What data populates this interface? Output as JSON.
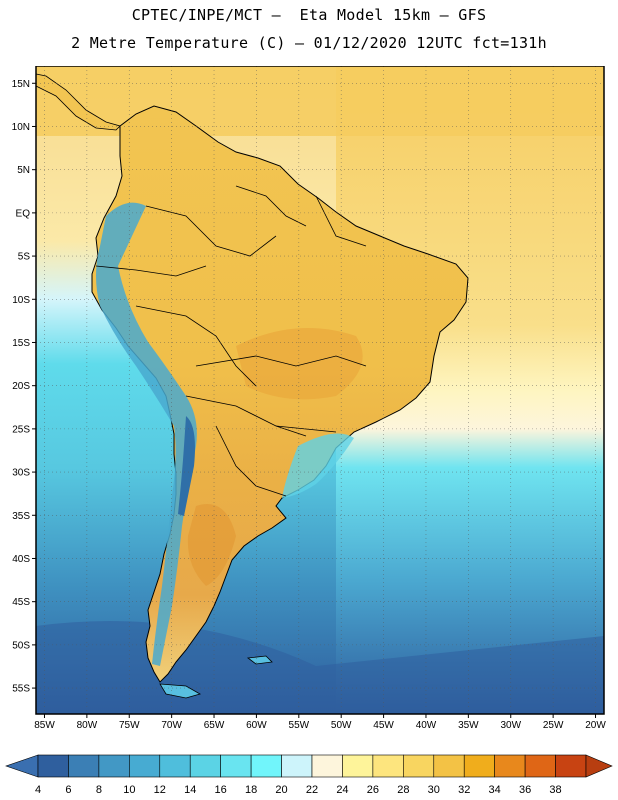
{
  "title": {
    "line1": "CPTEC/INPE/MCT –  Eta Model 15km – GFS",
    "line2": "2 Metre Temperature (C) – 01/12/2020 12UTC fct=131h"
  },
  "map": {
    "lon_range": [
      -86,
      -19
    ],
    "lat_range": [
      -58,
      17
    ],
    "lat_ticks": [
      {
        "value": 15,
        "label": "15N"
      },
      {
        "value": 10,
        "label": "10N"
      },
      {
        "value": 5,
        "label": "5N"
      },
      {
        "value": 0,
        "label": "EQ"
      },
      {
        "value": -5,
        "label": "5S"
      },
      {
        "value": -10,
        "label": "10S"
      },
      {
        "value": -15,
        "label": "15S"
      },
      {
        "value": -20,
        "label": "20S"
      },
      {
        "value": -25,
        "label": "25S"
      },
      {
        "value": -30,
        "label": "30S"
      },
      {
        "value": -35,
        "label": "35S"
      },
      {
        "value": -40,
        "label": "40S"
      },
      {
        "value": -45,
        "label": "45S"
      },
      {
        "value": -50,
        "label": "50S"
      },
      {
        "value": -55,
        "label": "55S"
      }
    ],
    "lon_ticks": [
      {
        "value": -85,
        "label": "85W"
      },
      {
        "value": -80,
        "label": "80W"
      },
      {
        "value": -75,
        "label": "75W"
      },
      {
        "value": -70,
        "label": "70W"
      },
      {
        "value": -65,
        "label": "65W"
      },
      {
        "value": -60,
        "label": "60W"
      },
      {
        "value": -55,
        "label": "55W"
      },
      {
        "value": -50,
        "label": "50W"
      },
      {
        "value": -45,
        "label": "45W"
      },
      {
        "value": -40,
        "label": "40W"
      },
      {
        "value": -35,
        "label": "35W"
      },
      {
        "value": -30,
        "label": "30W"
      },
      {
        "value": -25,
        "label": "25W"
      },
      {
        "value": -20,
        "label": "20W"
      }
    ],
    "colors": {
      "land_warm": "#f2c450",
      "land_hot": "#e9a93a",
      "andes_cold": "#44a6cc",
      "ocean_tropical": "#f6d88a",
      "ocean_mid": "#63d8ea",
      "ocean_south": "#3d8fbf",
      "ocean_deep": "#2d5f9f"
    }
  },
  "colorbar": {
    "labels": [
      "4",
      "6",
      "8",
      "10",
      "12",
      "14",
      "16",
      "18",
      "20",
      "22",
      "24",
      "26",
      "28",
      "30",
      "32",
      "34",
      "36",
      "38"
    ],
    "colors": [
      "#2f5f9e",
      "#3b7fb5",
      "#4298c5",
      "#47abd2",
      "#4fbedc",
      "#5bd3e5",
      "#69e4f0",
      "#71f5fb",
      "#cdf4fb",
      "#fdf5dc",
      "#fef49a",
      "#fde57e",
      "#f8d560",
      "#f3c245",
      "#f0ad1c",
      "#e8881c",
      "#df6616",
      "#c84312"
    ],
    "under_color": "#3a6fb0",
    "over_color": "#b83e10"
  }
}
